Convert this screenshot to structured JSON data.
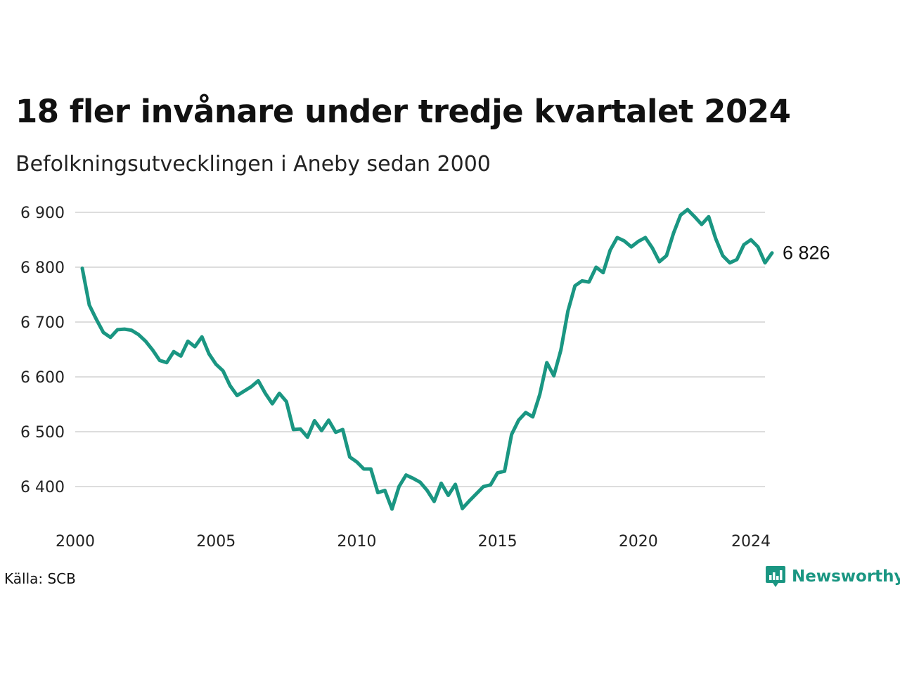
{
  "title": "18 fler invånare under tredje kvartalet 2024",
  "subtitle": "Befolkningsutvecklingen i Aneby sedan 2000",
  "source": "Källa: SCB",
  "brand": {
    "name": "Newsworthy",
    "icon": "newsworthy-logo-icon"
  },
  "colors": {
    "line": "#1a9682",
    "grid": "#dddddd",
    "brand": "#1a9682"
  },
  "chart_data": {
    "type": "line",
    "title": "18 fler invånare under tredje kvartalet 2024",
    "subtitle": "Befolkningsutvecklingen i Aneby sedan 2000",
    "xlabel": "",
    "ylabel": "",
    "xlim": [
      2000,
      2024.5
    ],
    "ylim": [
      6360,
      6910
    ],
    "x_ticks": [
      2000,
      2005,
      2010,
      2015,
      2020,
      2024
    ],
    "x_tick_labels": [
      "2000",
      "2005",
      "2010",
      "2015",
      "2020",
      "2024"
    ],
    "y_ticks": [
      6400,
      6500,
      6600,
      6700,
      6800,
      6900
    ],
    "y_tick_labels": [
      "6 400",
      "6 500",
      "6 600",
      "6 700",
      "6 800",
      "6 900"
    ],
    "grid": "horizontal",
    "legend": "none",
    "end_label": "6 826",
    "x_start": 2000.25,
    "x_step": 0.25,
    "values": [
      6798,
      6731,
      6705,
      6681,
      6672,
      6686,
      6687,
      6685,
      6677,
      6665,
      6649,
      6630,
      6626,
      6646,
      6638,
      6665,
      6655,
      6673,
      6642,
      6623,
      6611,
      6584,
      6566,
      6574,
      6582,
      6593,
      6570,
      6551,
      6570,
      6555,
      6504,
      6505,
      6490,
      6520,
      6502,
      6521,
      6499,
      6504,
      6454,
      6445,
      6432,
      6432,
      6389,
      6393,
      6359,
      6400,
      6421,
      6415,
      6408,
      6393,
      6373,
      6406,
      6384,
      6404,
      6360,
      6374,
      6387,
      6400,
      6403,
      6425,
      6428,
      6495,
      6521,
      6535,
      6527,
      6568,
      6626,
      6602,
      6649,
      6720,
      6766,
      6775,
      6773,
      6800,
      6790,
      6831,
      6854,
      6848,
      6837,
      6847,
      6854,
      6835,
      6810,
      6821,
      6862,
      6895,
      6905,
      6892,
      6878,
      6892,
      6852,
      6821,
      6808,
      6814,
      6841,
      6850,
      6837,
      6808,
      6826
    ]
  }
}
